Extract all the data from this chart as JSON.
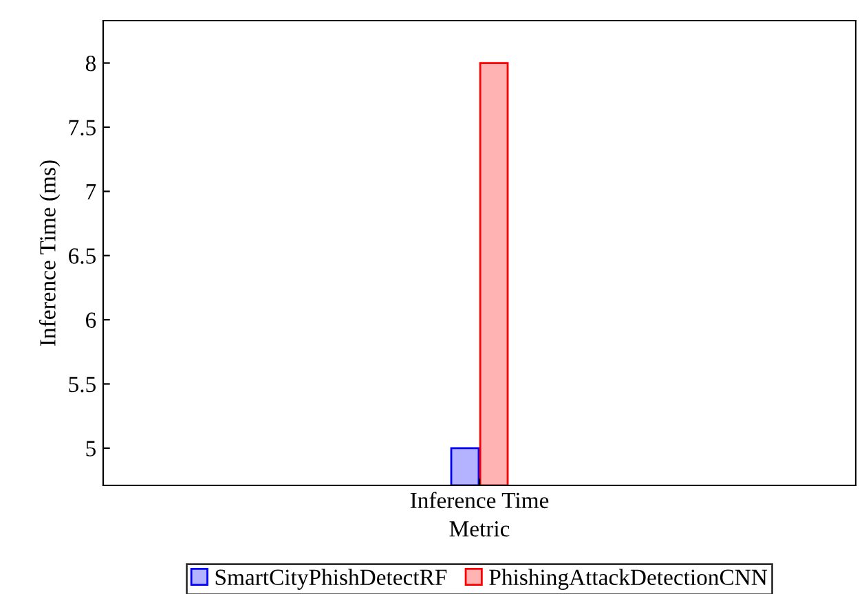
{
  "chart_data": {
    "type": "bar",
    "xlabel": "Metric",
    "ylabel": "Inference Time (ms)",
    "categories": [
      "Inference Time"
    ],
    "series": [
      {
        "name": "SmartCityPhishDetectRF",
        "color": "#b3b3ff",
        "values": [
          5
        ]
      },
      {
        "name": "PhishingAttackDetectionCNN",
        "color": "#ffb3b3",
        "values": [
          8
        ]
      }
    ],
    "ylim": [
      4.71,
      8.33
    ],
    "yticks": [
      5,
      5.5,
      6,
      6.5,
      7,
      7.5,
      8
    ],
    "grid": false,
    "legend": "bottom"
  }
}
